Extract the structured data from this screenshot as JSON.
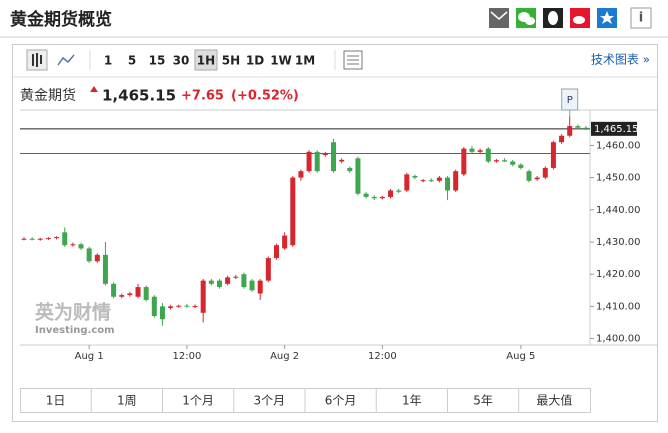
{
  "header": {
    "title": "黄金期货概览"
  },
  "toolbar": {
    "intervals": [
      "1",
      "5",
      "15",
      "30",
      "1H",
      "5H",
      "1D",
      "1W",
      "1M"
    ],
    "selected": "1H",
    "tech_chart": "技术图表 »"
  },
  "quote": {
    "name": "黄金期货",
    "price": "1,465.15",
    "change": "+7.65",
    "change_pct": "(+0.52%)"
  },
  "range_buttons": [
    "1日",
    "1周",
    "1个月",
    "3个月",
    "6个月",
    "1年",
    "5年",
    "最大值"
  ],
  "watermark": {
    "brand": "英为财情",
    "site": "Investing.com"
  },
  "chart_data": {
    "type": "candlestick",
    "categories": [
      null,
      null,
      null,
      null,
      null,
      null,
      null,
      null,
      "Aug 1",
      null,
      null,
      null,
      null,
      null,
      null,
      null,
      null,
      null,
      null,
      null,
      "12:00",
      null,
      null,
      null,
      null,
      null,
      null,
      null,
      null,
      null,
      null,
      null,
      "Aug 2",
      null,
      null,
      null,
      null,
      null,
      null,
      null,
      null,
      null,
      null,
      null,
      "12:00",
      null,
      null,
      null,
      null,
      null,
      null,
      null,
      null,
      null,
      null,
      null,
      null,
      null,
      null,
      null,
      null,
      "Aug 5",
      null,
      null,
      null,
      null,
      null,
      null,
      null,
      null
    ],
    "open": [
      1431,
      1431,
      1430.8,
      1431,
      1431.2,
      1433,
      1429,
      1429.3,
      1428,
      1424,
      1426,
      1417,
      1413,
      1413.5,
      1413,
      1416,
      1413,
      1410,
      1409.5,
      1410,
      1410.2,
      1410,
      1408,
      1418,
      1418,
      1417,
      1419,
      1420,
      1418,
      1414,
      1418,
      1425,
      1428,
      1429,
      1450,
      1452,
      1458,
      1457,
      1461,
      1455,
      1453,
      1456,
      1445,
      1444,
      1443.6,
      1444,
      1446,
      1446,
      1450.5,
      1449,
      1449.2,
      1449,
      1450,
      1446,
      1451,
      1459,
      1458,
      1459,
      1455,
      1455.4,
      1455,
      1454,
      1452,
      1449.5,
      1450,
      1453,
      1461,
      1463,
      1466,
      1465.5
    ],
    "high": [
      1431.5,
      1431.5,
      1431.3,
      1431.5,
      1431.8,
      1434.5,
      1429.8,
      1429.8,
      1428.5,
      1426.5,
      1430,
      1417.5,
      1414,
      1414.5,
      1417,
      1416.5,
      1413.5,
      1411,
      1410.5,
      1410.5,
      1410.8,
      1410.6,
      1418.5,
      1418.5,
      1418.5,
      1419.5,
      1419.8,
      1420.5,
      1418.5,
      1418.5,
      1425.5,
      1429.5,
      1433,
      1450.5,
      1452.5,
      1458.5,
      1458.5,
      1458,
      1462,
      1456,
      1453.5,
      1456.5,
      1445.5,
      1444.5,
      1444.4,
      1446.5,
      1446.5,
      1451.5,
      1451,
      1449.6,
      1449.8,
      1450.5,
      1450.5,
      1452.5,
      1459.5,
      1459.8,
      1459,
      1459.5,
      1455.8,
      1456,
      1455.5,
      1454.5,
      1452.5,
      1450.5,
      1453.5,
      1461.5,
      1463.5,
      1469,
      1466.5,
      1466
    ],
    "low": [
      1430.5,
      1430.5,
      1430.4,
      1430.6,
      1430.8,
      1428.5,
      1428.5,
      1427.5,
      1423.5,
      1423.5,
      1416.5,
      1412.5,
      1412.5,
      1413,
      1412.5,
      1411.5,
      1406.5,
      1404,
      1409,
      1409.5,
      1409.6,
      1409.5,
      1405,
      1416.5,
      1415.5,
      1416.5,
      1418.5,
      1415.5,
      1414.5,
      1412,
      1417.5,
      1424.5,
      1427.5,
      1428.5,
      1449,
      1451.5,
      1451.5,
      1456.5,
      1451.5,
      1454.5,
      1451.5,
      1444.5,
      1443.5,
      1443,
      1443.2,
      1443.5,
      1445.2,
      1445.5,
      1449.5,
      1448.5,
      1448.6,
      1448.5,
      1443,
      1445.5,
      1450.5,
      1457.5,
      1457.5,
      1454.5,
      1454.6,
      1454.8,
      1453.5,
      1452.5,
      1448.5,
      1449,
      1449.5,
      1452.5,
      1460.5,
      1462.5,
      1465,
      1464.8
    ],
    "close": [
      1431,
      1430.8,
      1431,
      1431.2,
      1431.5,
      1429,
      1429.3,
      1428,
      1424,
      1426,
      1417,
      1413,
      1413.5,
      1414,
      1416,
      1412,
      1407,
      1406,
      1410,
      1410.2,
      1410,
      1410.1,
      1418,
      1417,
      1416,
      1419,
      1419.2,
      1416,
      1415,
      1418,
      1425,
      1429,
      1432,
      1450,
      1452,
      1458,
      1452,
      1457.5,
      1452,
      1455.5,
      1452,
      1445,
      1444,
      1443.6,
      1444,
      1446,
      1445.6,
      1451,
      1450,
      1449.2,
      1449,
      1450,
      1446,
      1452,
      1459,
      1458,
      1458.5,
      1455,
      1455.4,
      1455,
      1454,
      1453,
      1449,
      1450,
      1453,
      1461,
      1463,
      1466,
      1465.5,
      1465.15
    ],
    "up_color": "#d7262e",
    "down_color": "#3fa650",
    "ylim": [
      1398,
      1471
    ],
    "yticks": [
      {
        "value": 1400,
        "label": "1,400.00"
      },
      {
        "value": 1410,
        "label": "1,410.00"
      },
      {
        "value": 1420,
        "label": "1,420.00"
      },
      {
        "value": 1430,
        "label": "1,430.00"
      },
      {
        "value": 1440,
        "label": "1,440.00"
      },
      {
        "value": 1450,
        "label": "1,450.00"
      },
      {
        "value": 1460,
        "label": "1,460.00"
      }
    ],
    "last_price": {
      "value": 1465.15,
      "label": "1,465.15"
    },
    "reference_line": 1457.5,
    "annotation": {
      "index": 67,
      "label": "P"
    }
  }
}
